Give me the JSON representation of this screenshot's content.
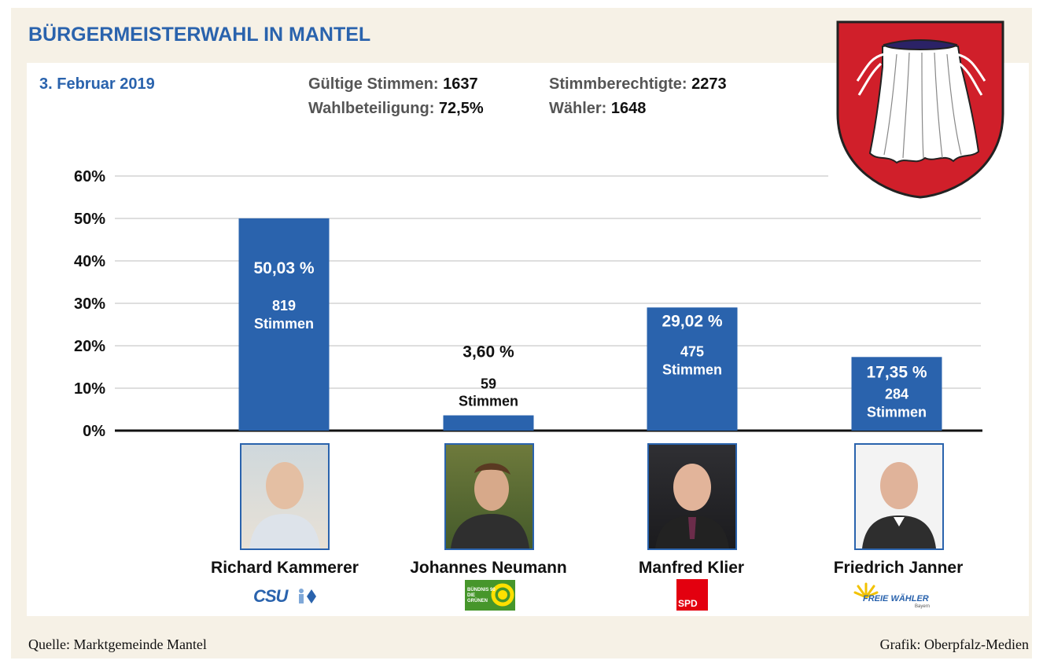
{
  "header": {
    "title": "BÜRGERMEISTERWAHL IN MANTEL",
    "date": "3. Februar 2019"
  },
  "stats": {
    "valid_label": "Gültige Stimmen:",
    "valid_value": "1637",
    "turnout_label": "Wahlbeteiligung:",
    "turnout_value": "72,5%",
    "eligible_label": "Stimmberechtigte:",
    "eligible_value": "2273",
    "voters_label": "Wähler:",
    "voters_value": "1648"
  },
  "chart_data": {
    "type": "bar",
    "title": "BÜRGERMEISTERWAHL IN MANTEL",
    "ylim": [
      0,
      60
    ],
    "yticks": [
      0,
      10,
      20,
      30,
      40,
      50,
      60
    ],
    "ytick_labels": [
      "0%",
      "10%",
      "20%",
      "30%",
      "40%",
      "50%",
      "60%"
    ],
    "grid": true,
    "categories": [
      "Richard Kammerer",
      "Johannes Neumann",
      "Manfred Klier",
      "Friedrich Janner"
    ],
    "values": [
      50.03,
      3.6,
      29.02,
      17.35
    ],
    "value_labels": [
      "50,03 %",
      "3,60 %",
      "29,02 %",
      "17,35 %"
    ],
    "votes": [
      "819",
      "59",
      "475",
      "284"
    ],
    "votes_unit": "Stimmen",
    "bar_color": "#2a63ad"
  },
  "candidates": [
    {
      "name": "Richard Kammerer",
      "party": "CSU",
      "party_color": "#2a63ad"
    },
    {
      "name": "Johannes Neumann",
      "party": "BÜNDNIS 90 DIE GRÜNEN",
      "party_color": "#46962b"
    },
    {
      "name": "Manfred Klier",
      "party": "SPD",
      "party_color": "#e3000f"
    },
    {
      "name": "Friedrich Janner",
      "party": "FREIE WÄHLER",
      "party_sub": "Bayern",
      "party_color": "#2a63ad"
    }
  ],
  "footer": {
    "source": "Quelle: Marktgemeinde Mantel",
    "credit": "Grafik: Oberpfalz-Medien"
  },
  "colors": {
    "accent": "#2a63ad",
    "background": "#f6f1e6",
    "crest_red": "#d01f2a"
  },
  "icons": [
    "coat-of-arms-icon",
    "csu-logo-icon",
    "gruene-logo-icon",
    "spd-logo-icon",
    "freie-waehler-logo-icon"
  ]
}
